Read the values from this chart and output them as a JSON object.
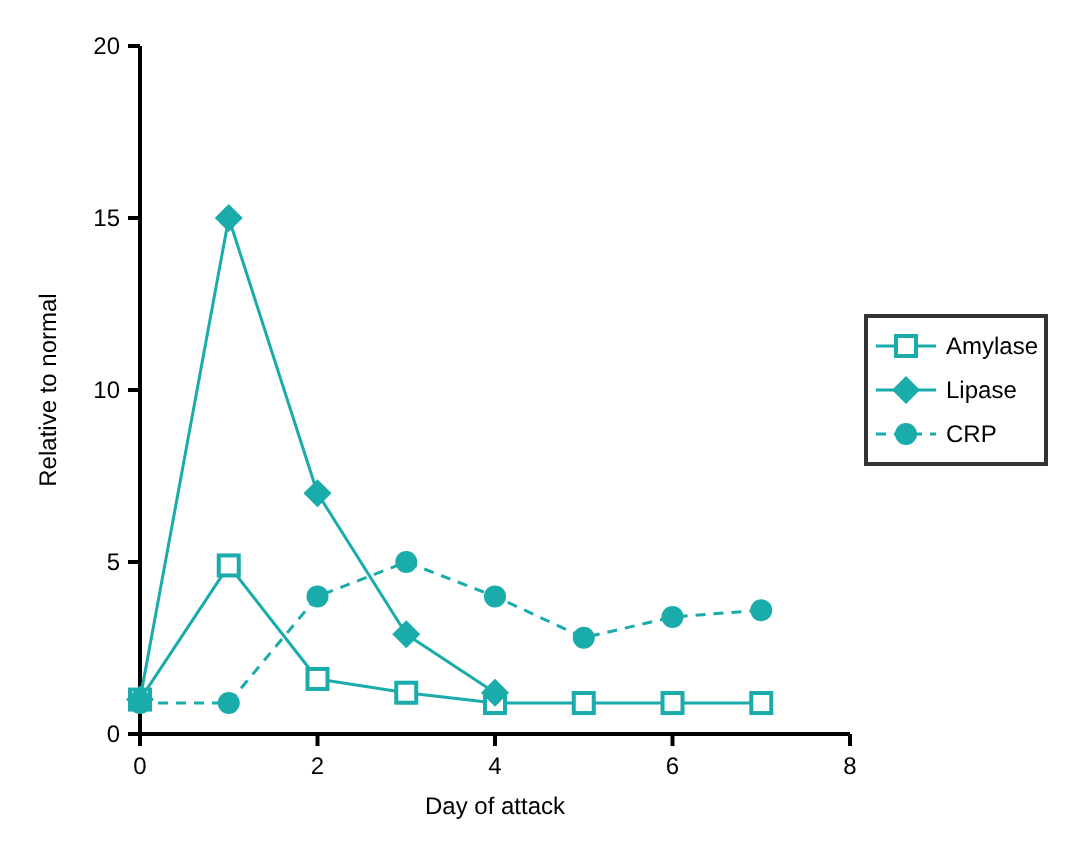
{
  "chart_data": {
    "type": "line",
    "xlabel": "Day of attack",
    "ylabel": "Relative to normal",
    "xlim": [
      0,
      8
    ],
    "ylim": [
      0,
      20
    ],
    "xticks": [
      0,
      2,
      4,
      6,
      8
    ],
    "yticks": [
      0,
      5,
      10,
      15,
      20
    ],
    "grid": false,
    "legend": "right",
    "series": [
      {
        "name": "Amylase",
        "color": "#1aabab",
        "marker": "square",
        "line_style": "solid",
        "x": [
          0,
          1,
          2,
          3,
          4,
          5,
          6,
          7
        ],
        "values": [
          1,
          4.9,
          1.6,
          1.2,
          0.9,
          0.9,
          0.9,
          0.9
        ]
      },
      {
        "name": "Lipase",
        "color": "#1aabab",
        "marker": "diamond",
        "line_style": "solid",
        "x": [
          0,
          1,
          2,
          3,
          4
        ],
        "values": [
          1,
          15,
          7,
          2.9,
          1.2
        ]
      },
      {
        "name": "CRP",
        "color": "#1aabab",
        "marker": "circle",
        "line_style": "dashed",
        "x": [
          0,
          1,
          2,
          3,
          4,
          5,
          6,
          7
        ],
        "values": [
          0.9,
          0.9,
          4,
          5,
          4,
          2.8,
          3.4,
          3.6
        ]
      }
    ]
  }
}
